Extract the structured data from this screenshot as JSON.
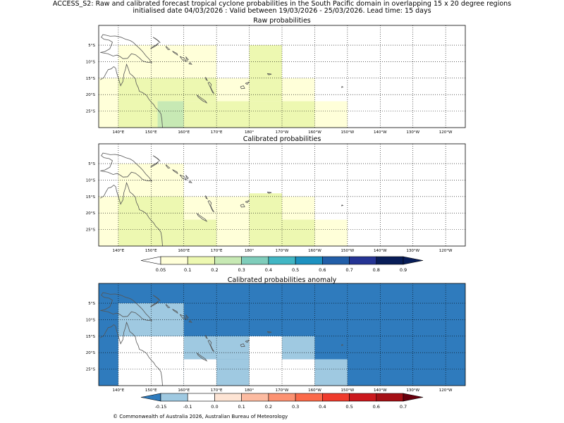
{
  "header": {
    "line1": "ACCESS_S2: Raw and calibrated forecast tropical cyclone probabilities in the South Pacific domain in overlapping 15 x 20 degree regions",
    "line2": "initialised date 04/03/2026 :  Valid between 19/03/2026 - 25/03/2026. Lead time: 15 days"
  },
  "footer": {
    "copyright": "© Commonwealth of Australia 2026, Australian Bureau of Meteorology"
  },
  "colors": {
    "prob_scale": [
      "#ffffff",
      "#ffffd9",
      "#edf8b1",
      "#c7e9b4",
      "#7fcdbb",
      "#41b6c4",
      "#1d91c0",
      "#225ea8",
      "#253494",
      "#081d58",
      "#081d58"
    ],
    "anom_scale": [
      "#2f7bbd",
      "#9fc9e1",
      "#ffffff",
      "#fde4d4",
      "#fcbba1",
      "#fc9272",
      "#fb6a4a",
      "#ef3b2c",
      "#cb181d",
      "#a50f15",
      "#67000d"
    ],
    "land_outline": "#555555",
    "grid": "#000000"
  },
  "chart_data": [
    {
      "type": "heatmap",
      "name": "raw",
      "title": "Raw probabilities",
      "xlim": [
        134,
        246
      ],
      "ylim": [
        -30,
        1
      ],
      "x_ticks": [
        140,
        150,
        160,
        170,
        180,
        190,
        200,
        210,
        220,
        230,
        240
      ],
      "x_tick_labels": [
        "140°E",
        "150°E",
        "160°E",
        "170°E",
        "180°",
        "170°W",
        "160°W",
        "150°W",
        "140°W",
        "130°W",
        "120°W"
      ],
      "y_ticks": [
        -5,
        -10,
        -15,
        -20,
        -25
      ],
      "y_tick_labels": [
        "5°S",
        "10°S",
        "15°S",
        "20°S",
        "25°S"
      ],
      "cells": [
        {
          "lon": [
            134,
            140
          ],
          "lat": [
            -30,
            -15
          ],
          "level": 1
        },
        {
          "lon": [
            140,
            170
          ],
          "lat": [
            -5,
            -15
          ],
          "level": 1
        },
        {
          "lon": [
            140,
            150
          ],
          "lat": [
            -15,
            -30
          ],
          "level": 2
        },
        {
          "lon": [
            150,
            170
          ],
          "lat": [
            -15,
            -22
          ],
          "level": 2
        },
        {
          "lon": [
            150,
            152
          ],
          "lat": [
            -22,
            -30
          ],
          "level": 2
        },
        {
          "lon": [
            152,
            160
          ],
          "lat": [
            -22,
            -30
          ],
          "level": 3
        },
        {
          "lon": [
            160,
            170
          ],
          "lat": [
            -22,
            -30
          ],
          "level": 2
        },
        {
          "lon": [
            170,
            180
          ],
          "lat": [
            -15,
            -22
          ],
          "level": 1
        },
        {
          "lon": [
            170,
            190
          ],
          "lat": [
            -22,
            -30
          ],
          "level": 2
        },
        {
          "lon": [
            180,
            190
          ],
          "lat": [
            -5,
            -22
          ],
          "level": 2
        },
        {
          "lon": [
            190,
            200
          ],
          "lat": [
            -15,
            -22
          ],
          "level": 1
        },
        {
          "lon": [
            190,
            200
          ],
          "lat": [
            -22,
            -30
          ],
          "level": 2
        },
        {
          "lon": [
            200,
            210
          ],
          "lat": [
            -22,
            -30
          ],
          "level": 1
        }
      ]
    },
    {
      "type": "heatmap",
      "name": "calibrated",
      "title": "Calibrated probabilities",
      "xlim": [
        134,
        246
      ],
      "ylim": [
        -30,
        1
      ],
      "x_ticks": [
        140,
        150,
        160,
        170,
        180,
        190,
        200,
        210,
        220,
        230,
        240
      ],
      "x_tick_labels": [
        "140°E",
        "150°E",
        "160°E",
        "170°E",
        "180°",
        "170°W",
        "160°W",
        "150°W",
        "140°W",
        "130°W",
        "120°W"
      ],
      "y_ticks": [
        -5,
        -10,
        -15,
        -20,
        -25
      ],
      "y_tick_labels": [
        "5°S",
        "10°S",
        "15°S",
        "20°S",
        "25°S"
      ],
      "cells": [
        {
          "lon": [
            134,
            140
          ],
          "lat": [
            -15,
            -30
          ],
          "level": 1
        },
        {
          "lon": [
            140,
            160
          ],
          "lat": [
            -5,
            -15
          ],
          "level": 1
        },
        {
          "lon": [
            160,
            170
          ],
          "lat": [
            -15,
            -22
          ],
          "level": 1
        },
        {
          "lon": [
            140,
            160
          ],
          "lat": [
            -15,
            -30
          ],
          "level": 2
        },
        {
          "lon": [
            160,
            170
          ],
          "lat": [
            -22,
            -30
          ],
          "level": 2
        },
        {
          "lon": [
            170,
            180
          ],
          "lat": [
            -15,
            -30
          ],
          "level": 1
        },
        {
          "lon": [
            180,
            190
          ],
          "lat": [
            -14,
            -30
          ],
          "level": 2
        },
        {
          "lon": [
            190,
            200
          ],
          "lat": [
            -15,
            -22
          ],
          "level": 1
        },
        {
          "lon": [
            190,
            200
          ],
          "lat": [
            -22,
            -30
          ],
          "level": 2
        },
        {
          "lon": [
            200,
            210
          ],
          "lat": [
            -22,
            -30
          ],
          "level": 1
        }
      ]
    },
    {
      "type": "heatmap",
      "name": "anomaly",
      "title": "Calibrated probabilities anomaly",
      "xlim": [
        134,
        246
      ],
      "ylim": [
        -30,
        1
      ],
      "x_ticks": [
        140,
        150,
        160,
        170,
        180,
        190,
        200,
        210,
        220,
        230,
        240
      ],
      "x_tick_labels": [
        "140°E",
        "150°E",
        "160°E",
        "170°E",
        "180°",
        "170°W",
        "160°W",
        "150°W",
        "140°W",
        "130°W",
        "120°W"
      ],
      "y_ticks": [
        -5,
        -10,
        -15,
        -20,
        -25
      ],
      "y_tick_labels": [
        "5°S",
        "10°S",
        "15°S",
        "20°S",
        "25°S"
      ],
      "background_level": 0,
      "cells": [
        {
          "lon": [
            140,
            160
          ],
          "lat": [
            -5,
            -15
          ],
          "level": 1
        },
        {
          "lon": [
            140,
            160
          ],
          "lat": [
            -15,
            -30
          ],
          "level": 2
        },
        {
          "lon": [
            160,
            180
          ],
          "lat": [
            -15,
            -22
          ],
          "level": 1
        },
        {
          "lon": [
            160,
            170
          ],
          "lat": [
            -22,
            -30
          ],
          "level": 2
        },
        {
          "lon": [
            170,
            180
          ],
          "lat": [
            -22,
            -30
          ],
          "level": 1
        },
        {
          "lon": [
            180,
            190
          ],
          "lat": [
            -15,
            -30
          ],
          "level": 2
        },
        {
          "lon": [
            190,
            200
          ],
          "lat": [
            -15,
            -22
          ],
          "level": 1
        },
        {
          "lon": [
            190,
            200
          ],
          "lat": [
            -22,
            -30
          ],
          "level": 2
        },
        {
          "lon": [
            200,
            210
          ],
          "lat": [
            -22,
            -30
          ],
          "level": 1
        }
      ]
    }
  ],
  "colorbars": {
    "prob": {
      "labels": [
        "0.05",
        "0.1",
        "0.2",
        "0.3",
        "0.4",
        "0.5",
        "0.6",
        "0.7",
        "0.8",
        "0.9"
      ]
    },
    "anom": {
      "labels": [
        "-0.15",
        "-0.1",
        "0.0",
        "0.1",
        "0.2",
        "0.3",
        "0.4",
        "0.5",
        "0.6",
        "0.7"
      ]
    }
  }
}
